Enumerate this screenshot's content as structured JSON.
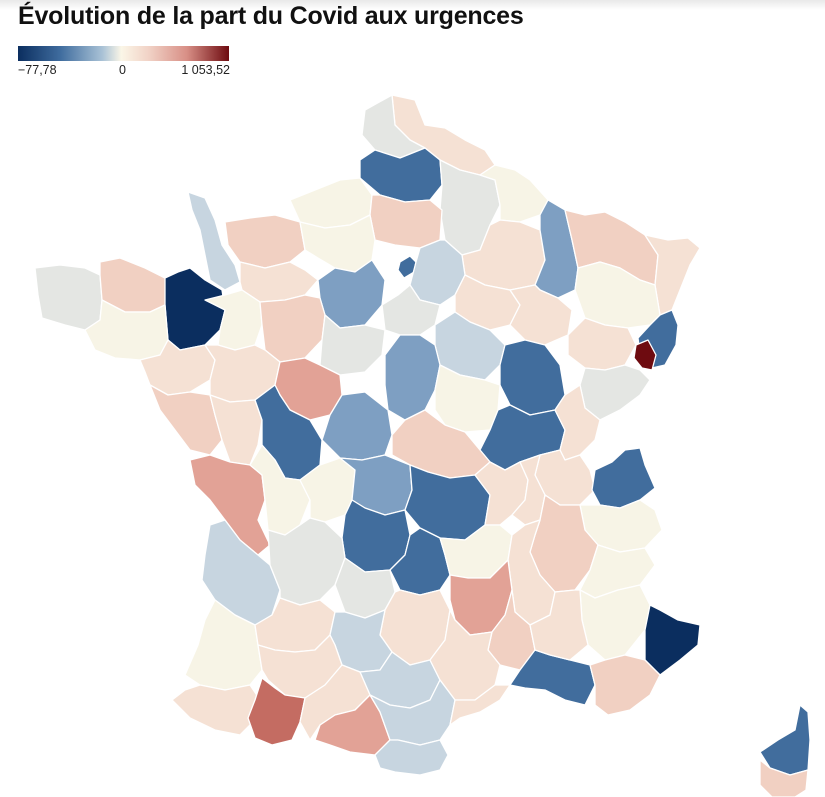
{
  "title": "Évolution de la part du Covid aux urgences",
  "legend": {
    "min_label": "−77,78",
    "mid_label": "0",
    "max_label": "1 053,52"
  },
  "colors": {
    "very_low": "#0b2e5f",
    "low": "#416d9d",
    "mid_low": "#7e9fc2",
    "light_blue": "#c7d5e0",
    "neutral": "#e4e6e3",
    "cream": "#f7f4e6",
    "peach_light": "#f5e1d4",
    "peach": "#f1d0c2",
    "salmon": "#e2a296",
    "red": "#c46c62",
    "very_high": "#6e0b10"
  },
  "regions": [
    {
      "name": "Nord",
      "color": "peach_light"
    },
    {
      "name": "Pas-de-Calais",
      "color": "neutral"
    },
    {
      "name": "Somme",
      "color": "low"
    },
    {
      "name": "Aisne",
      "color": "neutral"
    },
    {
      "name": "Ardennes",
      "color": "cream"
    },
    {
      "name": "Seine-Maritime",
      "color": "cream"
    },
    {
      "name": "Oise",
      "color": "peach"
    },
    {
      "name": "Marne",
      "color": "peach_light"
    },
    {
      "name": "Meuse",
      "color": "mid_low"
    },
    {
      "name": "Moselle",
      "color": "peach"
    },
    {
      "name": "Bas-Rhin",
      "color": "peach_light"
    },
    {
      "name": "Manche",
      "color": "light_blue"
    },
    {
      "name": "Calvados",
      "color": "peach"
    },
    {
      "name": "Eure",
      "color": "cream"
    },
    {
      "name": "Paris",
      "color": "low"
    },
    {
      "name": "Seine-et-Marne",
      "color": "light_blue"
    },
    {
      "name": "Finistère",
      "color": "neutral"
    },
    {
      "name": "Côtes-d'Armor",
      "color": "peach"
    },
    {
      "name": "Ille-et-Vilaine",
      "color": "very_low"
    },
    {
      "name": "Orne",
      "color": "peach_light"
    },
    {
      "name": "Eure-et-Loir",
      "color": "mid_low"
    },
    {
      "name": "Loiret",
      "color": "neutral"
    },
    {
      "name": "Aube",
      "color": "peach_light"
    },
    {
      "name": "Haute-Marne",
      "color": "peach_light"
    },
    {
      "name": "Vosges",
      "color": "cream"
    },
    {
      "name": "Haut-Rhin",
      "color": "low"
    },
    {
      "name": "Territoire de Belfort",
      "color": "very_high"
    },
    {
      "name": "Morbihan",
      "color": "cream"
    },
    {
      "name": "Mayenne",
      "color": "cream"
    },
    {
      "name": "Sarthe",
      "color": "peach"
    },
    {
      "name": "Loir-et-Cher",
      "color": "neutral"
    },
    {
      "name": "Yonne",
      "color": "light_blue"
    },
    {
      "name": "Côte-d'Or",
      "color": "low"
    },
    {
      "name": "Haute-Saône",
      "color": "peach_light"
    },
    {
      "name": "Doubs",
      "color": "neutral"
    },
    {
      "name": "Loire-Atlantique",
      "color": "peach_light"
    },
    {
      "name": "Maine-et-Loire",
      "color": "peach_light"
    },
    {
      "name": "Indre-et-Loire",
      "color": "salmon"
    },
    {
      "name": "Cher",
      "color": "mid_low"
    },
    {
      "name": "Nièvre",
      "color": "cream"
    },
    {
      "name": "Saône-et-Loire",
      "color": "low"
    },
    {
      "name": "Jura",
      "color": "peach_light"
    },
    {
      "name": "Vendée",
      "color": "peach"
    },
    {
      "name": "Deux-Sèvres",
      "color": "peach_light"
    },
    {
      "name": "Vienne",
      "color": "low"
    },
    {
      "name": "Indre",
      "color": "mid_low"
    },
    {
      "name": "Allier",
      "color": "peach"
    },
    {
      "name": "Ain",
      "color": "peach_light"
    },
    {
      "name": "Haute-Savoie",
      "color": "low"
    },
    {
      "name": "Charente-Maritime",
      "color": "salmon"
    },
    {
      "name": "Charente",
      "color": "cream"
    },
    {
      "name": "Haute-Vienne",
      "color": "cream"
    },
    {
      "name": "Creuse",
      "color": "mid_low"
    },
    {
      "name": "Puy-de-Dôme",
      "color": "low"
    },
    {
      "name": "Loire",
      "color": "peach_light"
    },
    {
      "name": "Rhône",
      "color": "peach_light"
    },
    {
      "name": "Savoie",
      "color": "cream"
    },
    {
      "name": "Corrèze",
      "color": "low"
    },
    {
      "name": "Cantal",
      "color": "low"
    },
    {
      "name": "Haute-Loire",
      "color": "cream"
    },
    {
      "name": "Isère",
      "color": "peach"
    },
    {
      "name": "Drôme",
      "color": "peach_light"
    },
    {
      "name": "Hautes-Alpes",
      "color": "cream"
    },
    {
      "name": "Gironde",
      "color": "light_blue"
    },
    {
      "name": "Dordogne",
      "color": "neutral"
    },
    {
      "name": "Lot",
      "color": "neutral"
    },
    {
      "name": "Aveyron",
      "color": "peach_light"
    },
    {
      "name": "Lozère",
      "color": "salmon"
    },
    {
      "name": "Ardèche",
      "color": "peach"
    },
    {
      "name": "Alpes-de-Haute-Provence",
      "color": "cream"
    },
    {
      "name": "Alpes-Maritimes",
      "color": "very_low"
    },
    {
      "name": "Landes",
      "color": "cream"
    },
    {
      "name": "Lot-et-Garonne",
      "color": "peach_light"
    },
    {
      "name": "Tarn-et-Garonne",
      "color": "light_blue"
    },
    {
      "name": "Tarn",
      "color": "light_blue"
    },
    {
      "name": "Gard",
      "color": "peach_light"
    },
    {
      "name": "Bouches-du-Rhône",
      "color": "low"
    },
    {
      "name": "Var",
      "color": "peach"
    },
    {
      "name": "Vaucluse",
      "color": "peach_light"
    },
    {
      "name": "Pyrénées-Atlantiques",
      "color": "peach_light"
    },
    {
      "name": "Gers",
      "color": "peach_light"
    },
    {
      "name": "Hautes-Pyrénées",
      "color": "red"
    },
    {
      "name": "Haute-Garonne",
      "color": "peach_light"
    },
    {
      "name": "Ariège",
      "color": "salmon"
    },
    {
      "name": "Aude",
      "color": "light_blue"
    },
    {
      "name": "Hérault",
      "color": "peach_light"
    },
    {
      "name": "Pyrénées-Orientales",
      "color": "light_blue"
    },
    {
      "name": "Haute-Corse",
      "color": "low"
    },
    {
      "name": "Corse-du-Sud",
      "color": "peach"
    }
  ]
}
